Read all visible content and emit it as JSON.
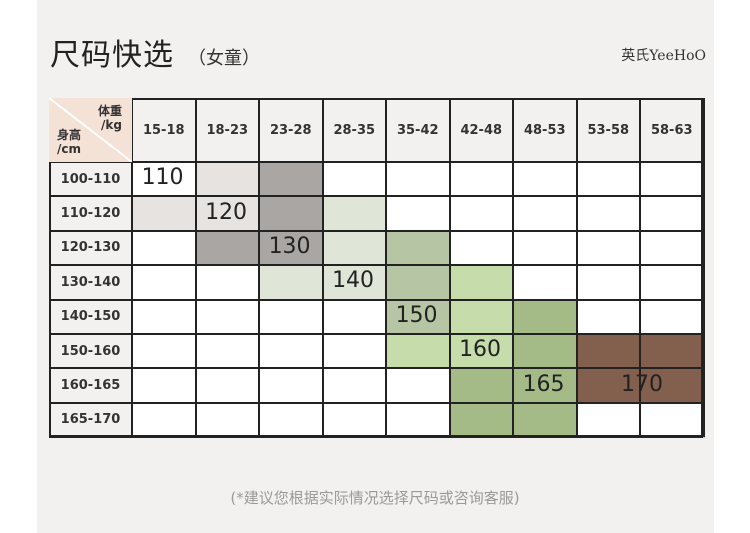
{
  "header": {
    "title": "尺码快选",
    "subtitle": "（女童）",
    "brand": "英氏YeeHoO"
  },
  "table": {
    "corner_weight": "体重\n/kg",
    "corner_height": "身高\n/cm",
    "weight_ranges": [
      "15-18",
      "18-23",
      "23-28",
      "28-35",
      "35-42",
      "42-48",
      "48-53",
      "53-58",
      "58-63"
    ],
    "height_ranges": [
      "100-110",
      "110-120",
      "120-130",
      "130-140",
      "140-150",
      "150-160",
      "160-165",
      "165-170"
    ],
    "sizes": [
      {
        "label": "110",
        "color": "#ffffff"
      },
      {
        "label": "120",
        "color": "#e6e3e1"
      },
      {
        "label": "130",
        "color": "#aaa6a4"
      },
      {
        "label": "140",
        "color": "#dfe6d7"
      },
      {
        "label": "150",
        "color": "#b6c6a4"
      },
      {
        "label": "160",
        "color": "#c6dcaa"
      },
      {
        "label": "165",
        "color": "#a4bb88"
      },
      {
        "label": "170",
        "color": "#835f4d"
      }
    ]
  },
  "footer": {
    "note": "(*建议您根据实际情况选择尺码或咨询客服)"
  }
}
